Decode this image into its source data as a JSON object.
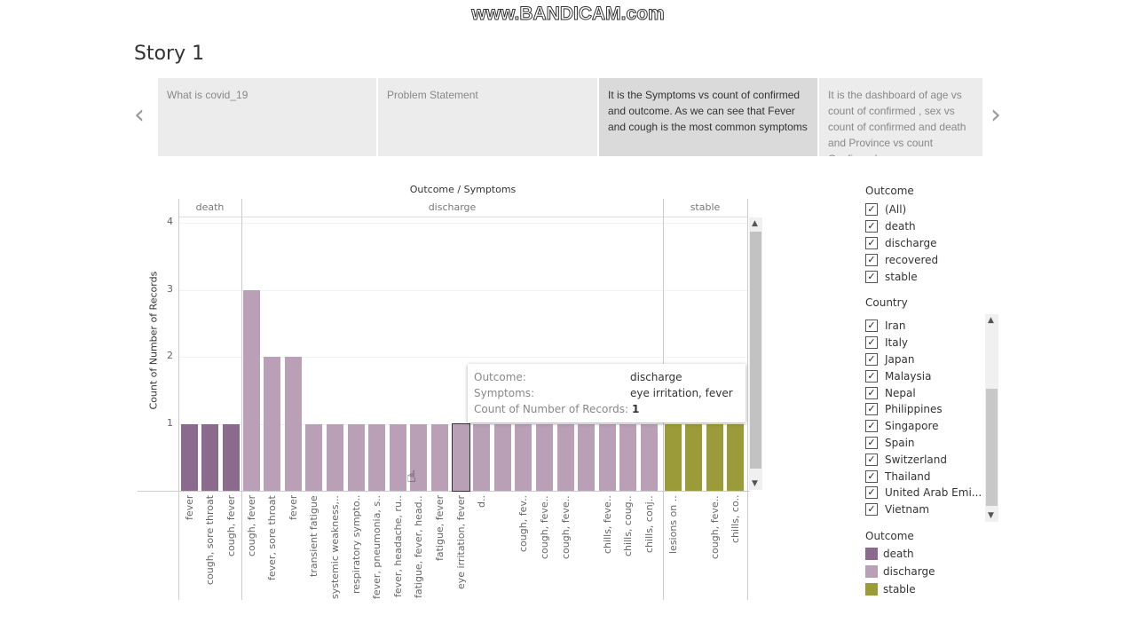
{
  "watermark": "www.BANDICAM.com",
  "story": {
    "title": "Story 1",
    "tabs": [
      {
        "label": "What is covid_19"
      },
      {
        "label": "Problem Statement"
      },
      {
        "label": "It is the Symptoms vs count of confirmed and outcome. As we can see that Fever and cough is the most common symptoms",
        "active": true
      },
      {
        "label": "It is the dashboard of age vs count of confirmed , sex vs count of confirmed and death and Province vs count Confirmed"
      }
    ],
    "prev_icon": "chevron-left-icon",
    "next_icon": "chevron-right-icon",
    "prev": "‹",
    "next": "›"
  },
  "chart_data": {
    "type": "bar",
    "title": "Outcome / Symptoms",
    "ylabel": "Count of Number of Records",
    "ylim": [
      0,
      4
    ],
    "yticks": [
      "1",
      "2",
      "3",
      "4"
    ],
    "panels": [
      {
        "name": "death",
        "color": "#8b6b8d",
        "categories": [
          "fever",
          "cough, sore throat",
          "cough, fever"
        ],
        "values": [
          1,
          1,
          1
        ]
      },
      {
        "name": "discharge",
        "color": "#b9a0b7",
        "categories": [
          "cough, fever",
          "fever, sore throat",
          "fever",
          "transient fatigue",
          "systemic weakness,..",
          "respiratory sympto..",
          "fever, pneumonia, s..",
          "fever, headache, ru..",
          "fatigue, fever, head..",
          "fatigue, fever",
          "eye irritation, fever",
          "d..",
          "",
          "cough, fev..",
          "cough, feve..",
          "cough, feve..",
          "",
          "chills, feve..",
          "chills, coug..",
          "chills, conj.."
        ],
        "values": [
          3,
          2,
          2,
          1,
          1,
          1,
          1,
          1,
          1,
          1,
          1,
          1,
          1,
          1,
          1,
          1,
          1,
          1,
          1,
          1
        ]
      },
      {
        "name": "stable",
        "color": "#9b9b3a",
        "categories": [
          "lesions on ..",
          "",
          "cough, feve..",
          "chills, co.."
        ],
        "values": [
          1,
          1,
          1,
          1
        ]
      }
    ]
  },
  "tooltip": {
    "outcome_label": "Outcome:",
    "outcome": "discharge",
    "symptoms_label": "Symptoms:",
    "symptoms": "eye irritation, fever",
    "count_label": "Count of Number of Records:",
    "count": "1"
  },
  "filters": {
    "outcome": {
      "title": "Outcome",
      "items": [
        "(All)",
        "death",
        "discharge",
        "recovered",
        "stable"
      ]
    },
    "country": {
      "title": "Country",
      "items": [
        "Iran",
        "Italy",
        "Japan",
        "Malaysia",
        "Nepal",
        "Philippines",
        "Singapore",
        "Spain",
        "Switzerland",
        "Thailand",
        "United Arab Emi...",
        "Vietnam"
      ]
    }
  },
  "legend": {
    "title": "Outcome",
    "items": [
      {
        "label": "death",
        "color": "#8b6b8d"
      },
      {
        "label": "discharge",
        "color": "#b9a0b7"
      },
      {
        "label": "stable",
        "color": "#9b9b3a"
      }
    ]
  }
}
